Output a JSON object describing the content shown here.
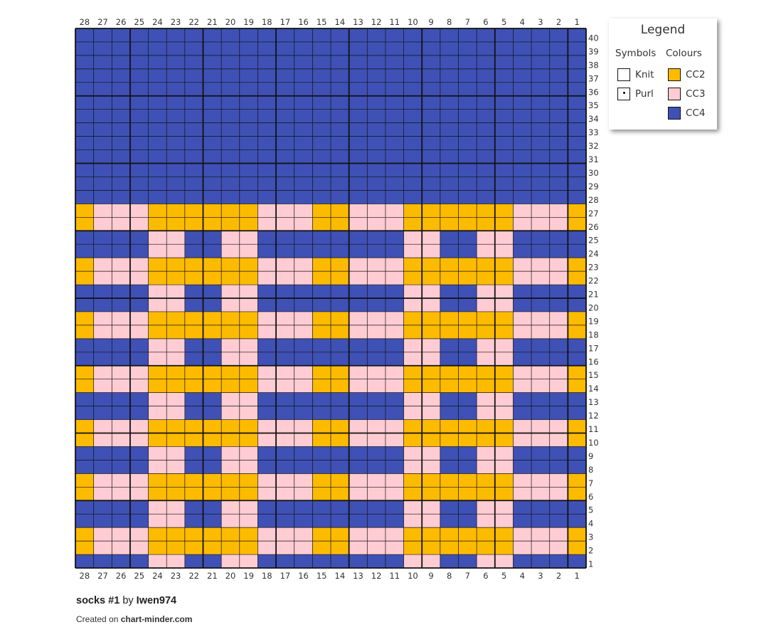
{
  "legend": {
    "title": "Legend",
    "symbols_heading": "Symbols",
    "colours_heading": "Colours",
    "symbols": [
      {
        "label": "Knit",
        "icon": "knit-symbol"
      },
      {
        "label": "Purl",
        "icon": "purl-dot-symbol"
      }
    ],
    "colours": [
      {
        "label": "CC2",
        "color": "#fdbb00"
      },
      {
        "label": "CC3",
        "color": "#ffccd3"
      },
      {
        "label": "CC4",
        "color": "#3f51b5"
      }
    ]
  },
  "footer": {
    "pattern_name": "socks #1",
    "by": "by",
    "author": "Iwen974",
    "created_on": "Created on",
    "site": "chart-minder.com"
  },
  "chart_data": {
    "type": "table",
    "columns": 28,
    "rows": 40,
    "column_numbers": [
      28,
      27,
      26,
      25,
      24,
      23,
      22,
      21,
      20,
      19,
      18,
      17,
      16,
      15,
      14,
      13,
      12,
      11,
      10,
      9,
      8,
      7,
      6,
      5,
      4,
      3,
      2,
      1
    ],
    "row_numbers_top_to_bottom": [
      40,
      39,
      38,
      37,
      36,
      35,
      34,
      33,
      32,
      31,
      30,
      29,
      28,
      27,
      26,
      25,
      24,
      23,
      22,
      21,
      20,
      19,
      18,
      17,
      16,
      15,
      14,
      13,
      12,
      11,
      10,
      9,
      8,
      7,
      6,
      5,
      4,
      3,
      2,
      1
    ],
    "colour_key": {
      "Y": "CC2",
      "P": "CC3",
      "B": "CC4"
    },
    "grid_rows_top_to_bottom": [
      "BBBBBBBBBBBBBBBBBBBBBBBBBBBB",
      "BBBBBBBBBBBBBBBBBBBBBBBBBBBB",
      "BBBBBBBBBBBBBBBBBBBBBBBBBBBB",
      "BBBBBBBBBBBBBBBBBBBBBBBBBBBB",
      "BBBBBBBBBBBBBBBBBBBBBBBBBBBB",
      "BBBBBBBBBBBBBBBBBBBBBBBBBBBB",
      "BBBBBBBBBBBBBBBBBBBBBBBBBBBB",
      "BBBBBBBBBBBBBBBBBBBBBBBBBBBB",
      "BBBBBBBBBBBBBBBBBBBBBBBBBBBB",
      "BBBBBBBBBBBBBBBBBBBBBBBBBBBB",
      "BBBBBBBBBBBBBBBBBBBBBBBBBBBB",
      "BBBBBBBBBBBBBBBBBBBBBBBBBBBB",
      "BBBBBBBBBBBBBBBBBBBBBBBBBBBB",
      "YPPPYYYYYYPPPYYPPPYYYYYYPPPY",
      "YPPPYYYYYYPPPYYPPPYYYYYYPPPY",
      "BBBBPPBBPPBBBBBBBBPPBBPPBBBB",
      "BBBBPPBBPPBBBBBBBBPPBBPPBBBB",
      "YPPPYYYYYYPPPYYPPPYYYYYYPPPY",
      "YPPPYYYYYYPPPYYPPPYYYYYYPPPY",
      "BBBBPPBBPPBBBBBBBBPPBBPPBBBB",
      "BBBBPPBBPPBBBBBBBBPPBBPPBBBB",
      "YPPPYYYYYYPPPYYPPPYYYYYYPPPY",
      "YPPPYYYYYYPPPYYPPPYYYYYYPPPY",
      "BBBBPPBBPPBBBBBBBBPPBBPPBBBB",
      "BBBBPPBBPPBBBBBBBBPPBBPPBBBB",
      "YPPPYYYYYYPPPYYPPPYYYYYYPPPY",
      "YPPPYYYYYYPPPYYPPPYYYYYYPPPY",
      "BBBBPPBBPPBBBBBBBBPPBBPPBBBB",
      "BBBBPPBBPPBBBBBBBBPPBBPPBBBB",
      "YPPPYYYYYYPPPYYPPPYYYYYYPPPY",
      "YPPPYYYYYYPPPYYPPPYYYYYYPPPY",
      "BBBBPPBBPPBBBBBBBBPPBBPPBBBB",
      "BBBBPPBBPPBBBBBBBBPPBBPPBBBB",
      "YPPPYYYYYYPPPYYPPPYYYYYYPPPY",
      "YPPPYYYYYYPPPYYPPPYYYYYYPPPY",
      "BBBBPPBBPPBBBBBBBBPPBBPPBBBB",
      "BBBBPPBBPPBBBBBBBBPPBBPPBBBB",
      "YPPPYYYYYYPPPYYPPPYYYYYYPPPY",
      "YPPPYYYYYYPPPYYPPPYYYYYYPPPY",
      "BBBBPPBBPPBBBBBBBBPPBBPPBBBB"
    ]
  }
}
